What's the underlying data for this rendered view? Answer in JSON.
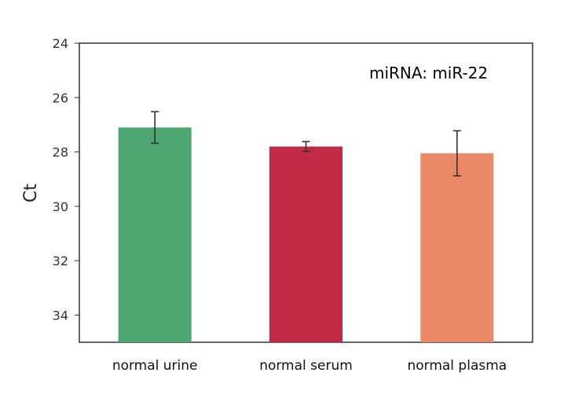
{
  "chart_data": {
    "type": "bar",
    "categories": [
      "normal urine",
      "normal serum",
      "normal plasma"
    ],
    "values": [
      27.1,
      27.8,
      28.05
    ],
    "errors": [
      0.58,
      0.18,
      0.83
    ],
    "colors": [
      "#4ea673",
      "#c32a48",
      "#ea8966"
    ],
    "ylabel": "Ct",
    "xlabel": "",
    "ylim": [
      24,
      35
    ],
    "y_inverted": true,
    "yticks": [
      24,
      26,
      28,
      30,
      32,
      34
    ],
    "annotation": "miRNA: miR-22",
    "grid": false
  }
}
